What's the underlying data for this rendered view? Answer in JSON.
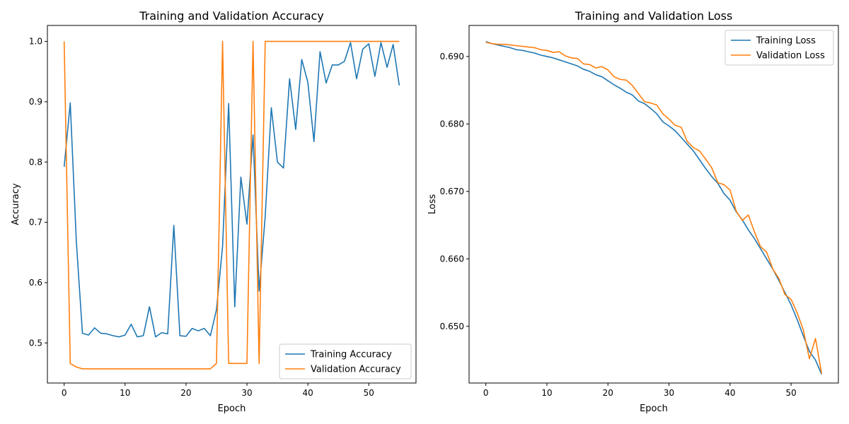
{
  "chart_data": [
    {
      "type": "line",
      "title": "Training and Validation Accuracy",
      "xlabel": "Epoch",
      "ylabel": "Accuracy",
      "xlim": [
        -2.75,
        57.75
      ],
      "ylim": [
        0.4335,
        1.0265
      ],
      "xticks": [
        0,
        10,
        20,
        30,
        40,
        50
      ],
      "yticks": [
        0.5,
        0.6,
        0.7,
        0.8,
        0.9,
        1.0
      ],
      "xtick_labels": [
        "0",
        "10",
        "20",
        "30",
        "40",
        "50"
      ],
      "ytick_labels": [
        "0.5",
        "0.6",
        "0.7",
        "0.8",
        "0.9",
        "1.0"
      ],
      "legend_loc": "lower-right",
      "x": [
        0,
        1,
        2,
        3,
        4,
        5,
        6,
        7,
        8,
        9,
        10,
        11,
        12,
        13,
        14,
        15,
        16,
        17,
        18,
        19,
        20,
        21,
        22,
        23,
        24,
        25,
        26,
        27,
        28,
        29,
        30,
        31,
        32,
        33,
        34,
        35,
        36,
        37,
        38,
        39,
        40,
        41,
        42,
        43,
        44,
        45,
        46,
        47,
        48,
        49,
        50,
        51,
        52,
        53,
        54,
        55
      ],
      "series": [
        {
          "name": "Training Accuracy",
          "color": "#1f77b4",
          "values": [
            0.792,
            0.898,
            0.668,
            0.516,
            0.513,
            0.525,
            0.516,
            0.515,
            0.512,
            0.51,
            0.513,
            0.531,
            0.51,
            0.512,
            0.56,
            0.51,
            0.517,
            0.515,
            0.695,
            0.512,
            0.511,
            0.524,
            0.52,
            0.524,
            0.512,
            0.555,
            0.66,
            0.897,
            0.56,
            0.775,
            0.697,
            0.845,
            0.586,
            0.71,
            0.89,
            0.8,
            0.79,
            0.938,
            0.854,
            0.97,
            0.932,
            0.834,
            0.983,
            0.931,
            0.961,
            0.961,
            0.967,
            0.998,
            0.938,
            0.987,
            0.996,
            0.942,
            0.998,
            0.957,
            0.995,
            0.927
          ]
        },
        {
          "name": "Validation Accuracy",
          "color": "#ff7f0e",
          "values": [
            1.0,
            0.466,
            0.46,
            0.457,
            0.457,
            0.457,
            0.457,
            0.457,
            0.457,
            0.457,
            0.457,
            0.457,
            0.457,
            0.457,
            0.457,
            0.457,
            0.457,
            0.457,
            0.457,
            0.457,
            0.457,
            0.457,
            0.457,
            0.457,
            0.457,
            0.466,
            1.0,
            0.466,
            0.466,
            0.466,
            0.466,
            1.0,
            0.466,
            1.0,
            1.0,
            1.0,
            1.0,
            1.0,
            1.0,
            1.0,
            1.0,
            1.0,
            1.0,
            1.0,
            1.0,
            1.0,
            1.0,
            1.0,
            1.0,
            1.0,
            1.0,
            1.0,
            1.0,
            1.0,
            1.0,
            1.0
          ]
        }
      ]
    },
    {
      "type": "line",
      "title": "Training and Validation Loss",
      "xlabel": "Epoch",
      "ylabel": "Loss",
      "xlim": [
        -2.75,
        57.75
      ],
      "ylim": [
        0.6416,
        0.6946
      ],
      "xticks": [
        0,
        10,
        20,
        30,
        40,
        50
      ],
      "yticks": [
        0.65,
        0.66,
        0.67,
        0.68,
        0.69
      ],
      "xtick_labels": [
        "0",
        "10",
        "20",
        "30",
        "40",
        "50"
      ],
      "ytick_labels": [
        "0.650",
        "0.660",
        "0.670",
        "0.680",
        "0.690"
      ],
      "legend_loc": "top-right",
      "x": [
        0,
        1,
        2,
        3,
        4,
        5,
        6,
        7,
        8,
        9,
        10,
        11,
        12,
        13,
        14,
        15,
        16,
        17,
        18,
        19,
        20,
        21,
        22,
        23,
        24,
        25,
        26,
        27,
        28,
        29,
        30,
        31,
        32,
        33,
        34,
        35,
        36,
        37,
        38,
        39,
        40,
        41,
        42,
        43,
        44,
        45,
        46,
        47,
        48,
        49,
        50,
        51,
        52,
        53,
        54,
        55
      ],
      "series": [
        {
          "name": "Training Loss",
          "color": "#1f77b4",
          "values": [
            0.6922,
            0.6919,
            0.6917,
            0.6915,
            0.6913,
            0.691,
            0.6909,
            0.6907,
            0.6905,
            0.6902,
            0.69,
            0.6898,
            0.6895,
            0.6892,
            0.6889,
            0.6886,
            0.6881,
            0.6878,
            0.6873,
            0.687,
            0.6864,
            0.6858,
            0.6853,
            0.6847,
            0.6843,
            0.6834,
            0.683,
            0.6823,
            0.6815,
            0.6803,
            0.6797,
            0.679,
            0.678,
            0.677,
            0.676,
            0.6747,
            0.6734,
            0.6722,
            0.6712,
            0.6697,
            0.6687,
            0.667,
            0.6658,
            0.6643,
            0.663,
            0.6615,
            0.66,
            0.6585,
            0.6568,
            0.655,
            0.6532,
            0.651,
            0.6486,
            0.6463,
            0.645,
            0.6429
          ]
        },
        {
          "name": "Validation Loss",
          "color": "#ff7f0e",
          "values": [
            0.6921,
            0.6919,
            0.6918,
            0.6918,
            0.6917,
            0.6916,
            0.6915,
            0.6914,
            0.6913,
            0.691,
            0.6909,
            0.6906,
            0.6907,
            0.6901,
            0.6898,
            0.6897,
            0.6889,
            0.6888,
            0.6883,
            0.6885,
            0.688,
            0.687,
            0.6866,
            0.6865,
            0.6857,
            0.6845,
            0.6833,
            0.6831,
            0.6828,
            0.6815,
            0.6807,
            0.6798,
            0.6795,
            0.6774,
            0.6765,
            0.676,
            0.6748,
            0.6735,
            0.6713,
            0.671,
            0.6702,
            0.6671,
            0.6657,
            0.6665,
            0.664,
            0.6618,
            0.661,
            0.6585,
            0.6571,
            0.6547,
            0.654,
            0.652,
            0.6495,
            0.6452,
            0.6482,
            0.643
          ]
        }
      ]
    }
  ]
}
